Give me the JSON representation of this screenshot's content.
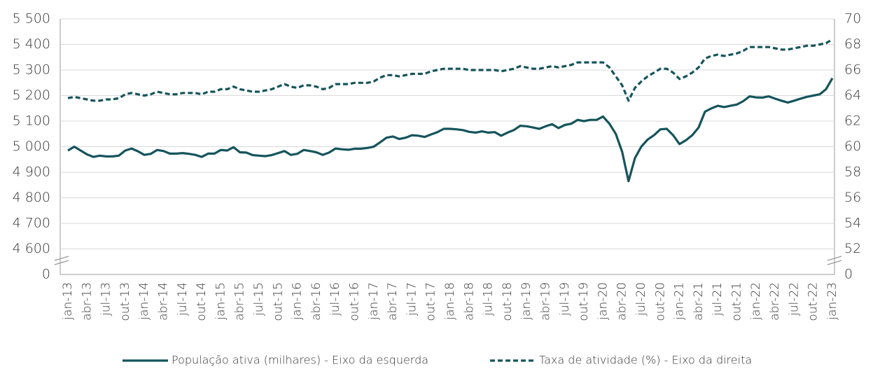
{
  "chart_data": {
    "type": "line",
    "categories": [
      "jan-13",
      null,
      null,
      "abr-13",
      null,
      null,
      "jul-13",
      null,
      null,
      "out-13",
      null,
      null,
      "jan-14",
      null,
      null,
      "abr-14",
      null,
      null,
      "jul-14",
      null,
      null,
      "out-14",
      null,
      null,
      "jan-15",
      null,
      null,
      "abr-15",
      null,
      null,
      "jul-15",
      null,
      null,
      "out-15",
      null,
      null,
      "jan-16",
      null,
      null,
      "abr-16",
      null,
      null,
      "jul-16",
      null,
      null,
      "out-16",
      null,
      null,
      "jan-17",
      null,
      null,
      "abr-17",
      null,
      null,
      "jul-17",
      null,
      null,
      "out-17",
      null,
      null,
      "jan-18",
      null,
      null,
      "abr-18",
      null,
      null,
      "jul-18",
      null,
      null,
      "out-18",
      null,
      null,
      "jan-19",
      null,
      null,
      "abr-19",
      null,
      null,
      "jul-19",
      null,
      null,
      "out-19",
      null,
      null,
      "jan-20",
      null,
      null,
      "abr-20",
      null,
      null,
      "jul-20",
      null,
      null,
      "out-20",
      null,
      null,
      "jan-21",
      null,
      null,
      "abr-21",
      null,
      null,
      "jul-21",
      null,
      null,
      "out-21",
      null,
      null,
      "jan-22",
      null,
      null,
      "abr-22",
      null,
      null,
      "jul-22",
      null,
      null,
      "out-22",
      null,
      null,
      "jan-23"
    ],
    "series": [
      {
        "name": "População ativa (milhares) - Eixo da esquerda",
        "color": "#15545c",
        "line_style": "solid",
        "values": [
          4985,
          5000,
          4985,
          4970,
          4960,
          4965,
          4962,
          4962,
          4965,
          4985,
          4993,
          4982,
          4968,
          4972,
          4987,
          4983,
          4973,
          4973,
          4975,
          4972,
          4968,
          4960,
          4973,
          4973,
          4987,
          4985,
          4998,
          4978,
          4977,
          4967,
          4965,
          4963,
          4967,
          4975,
          4983,
          4968,
          4972,
          4987,
          4983,
          4978,
          4968,
          4977,
          4993,
          4990,
          4988,
          4992,
          4992,
          4995,
          5000,
          5017,
          5035,
          5040,
          5030,
          5035,
          5045,
          5043,
          5038,
          5048,
          5057,
          5070,
          5070,
          5068,
          5065,
          5058,
          5055,
          5060,
          5055,
          5057,
          5043,
          5055,
          5065,
          5082,
          5080,
          5075,
          5070,
          5080,
          5088,
          5073,
          5085,
          5090,
          5105,
          5100,
          5105,
          5105,
          5118,
          5090,
          5050,
          4980,
          4865,
          4955,
          5000,
          5028,
          5045,
          5068,
          5070,
          5045,
          5010,
          5025,
          5045,
          5075,
          5137,
          5150,
          5160,
          5155,
          5160,
          5165,
          5178,
          5197,
          5193,
          5192,
          5197,
          5188,
          5180,
          5173,
          5180,
          5188,
          5195,
          5200,
          5205,
          5225,
          5268
        ]
      },
      {
        "name": "Taxa de atividade (%) - Eixo da direita",
        "color": "#15545c",
        "line_style": "dashed",
        "axis": "y2",
        "values": [
          63.8,
          63.9,
          63.8,
          63.7,
          63.6,
          63.6,
          63.7,
          63.7,
          63.8,
          64.1,
          64.2,
          64.1,
          64.0,
          64.1,
          64.3,
          64.2,
          64.1,
          64.1,
          64.2,
          64.2,
          64.2,
          64.1,
          64.3,
          64.3,
          64.5,
          64.5,
          64.7,
          64.5,
          64.4,
          64.3,
          64.3,
          64.4,
          64.5,
          64.7,
          64.9,
          64.7,
          64.6,
          64.8,
          64.8,
          64.7,
          64.5,
          64.6,
          64.9,
          64.9,
          64.9,
          65.0,
          65.0,
          65.0,
          65.1,
          65.4,
          65.6,
          65.6,
          65.5,
          65.6,
          65.7,
          65.7,
          65.7,
          65.9,
          66.0,
          66.1,
          66.1,
          66.1,
          66.1,
          66.0,
          66.0,
          66.0,
          66.0,
          66.0,
          65.9,
          66.0,
          66.1,
          66.3,
          66.2,
          66.1,
          66.1,
          66.2,
          66.3,
          66.2,
          66.3,
          66.4,
          66.6,
          66.6,
          66.6,
          66.6,
          66.6,
          66.2,
          65.5,
          64.8,
          63.6,
          64.6,
          65.1,
          65.5,
          65.8,
          66.1,
          66.1,
          65.8,
          65.3,
          65.5,
          65.8,
          66.2,
          66.9,
          67.1,
          67.2,
          67.1,
          67.2,
          67.3,
          67.5,
          67.8,
          67.8,
          67.8,
          67.8,
          67.7,
          67.6,
          67.6,
          67.7,
          67.8,
          67.9,
          67.9,
          68.0,
          68.1,
          68.4
        ]
      }
    ],
    "ylim": [
      0,
      5500
    ],
    "ybreak": [
      0,
      4500
    ],
    "yticks": [
      0,
      {
        "value": 4600,
        "label": "4 600"
      },
      {
        "value": 4700,
        "label": "4 700"
      },
      {
        "value": 4800,
        "label": "4 800"
      },
      {
        "value": 4900,
        "label": "4 900"
      },
      {
        "value": 5000,
        "label": "5 000"
      },
      {
        "value": 5100,
        "label": "5 100"
      },
      {
        "value": 5200,
        "label": "5 200"
      },
      {
        "value": 5300,
        "label": "5 300"
      },
      {
        "value": 5400,
        "label": "5 400"
      },
      {
        "value": 5500,
        "label": "5 500"
      }
    ],
    "y2lim": [
      0,
      70
    ],
    "y2break": [
      0,
      50
    ],
    "y2ticks": [
      0,
      52,
      54,
      56,
      58,
      60,
      62,
      64,
      66,
      68,
      70
    ],
    "grid": true,
    "legend": "bottom"
  }
}
